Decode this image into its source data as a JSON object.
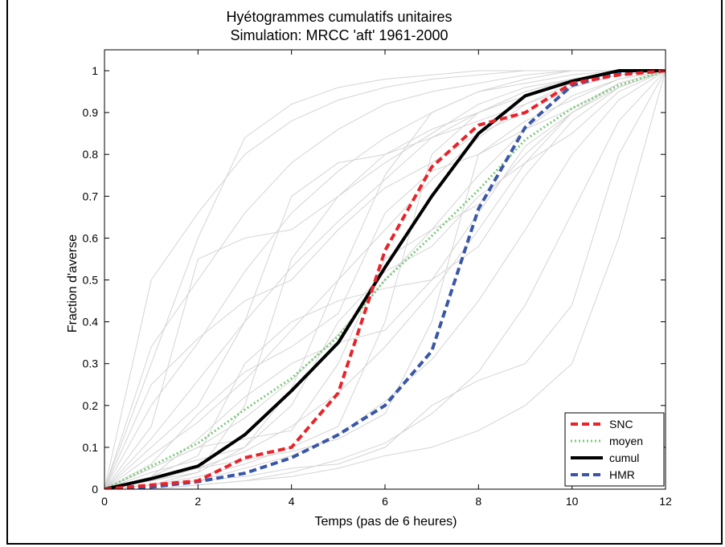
{
  "chart_data": {
    "type": "line",
    "title": "Hyétogrammes cumulatifs unitaires",
    "subtitle": "Simulation:  MRCC 'aft' 1961-2000",
    "xlabel": "Temps (pas de 6 heures)",
    "ylabel": "Fraction d'averse",
    "xlim": [
      0,
      12
    ],
    "ylim": [
      0,
      1.05
    ],
    "xticks": [
      0,
      2,
      4,
      6,
      8,
      10,
      12
    ],
    "xtick_labels": [
      "0",
      "2",
      "4",
      "6",
      "8",
      "10",
      "12"
    ],
    "yticks": [
      0,
      0.1,
      0.2,
      0.3,
      0.4,
      0.5,
      0.6,
      0.7,
      0.8,
      0.9,
      1
    ],
    "ytick_labels": [
      "0",
      "0.1",
      "0.2",
      "0.3",
      "0.4",
      "0.5",
      "0.6",
      "0.7",
      "0.8",
      "0.9",
      "1"
    ],
    "grid": false,
    "legend_position": "bottom-right",
    "x": [
      0,
      1,
      2,
      3,
      4,
      5,
      6,
      7,
      8,
      9,
      10,
      11,
      12
    ],
    "series": [
      {
        "name": "SNC",
        "color": "#e8232a",
        "style": "dashed",
        "width": 4,
        "values": [
          0,
          0.01,
          0.02,
          0.075,
          0.1,
          0.23,
          0.57,
          0.77,
          0.87,
          0.9,
          0.97,
          0.99,
          1.0
        ]
      },
      {
        "name": "moyen",
        "color": "#7ec87e",
        "style": "dotted",
        "width": 3,
        "values": [
          0,
          0.055,
          0.11,
          0.19,
          0.265,
          0.365,
          0.5,
          0.605,
          0.715,
          0.835,
          0.91,
          0.965,
          1.0
        ]
      },
      {
        "name": "cumul",
        "color": "#000000",
        "style": "solid",
        "width": 4,
        "values": [
          0,
          0.025,
          0.055,
          0.13,
          0.235,
          0.35,
          0.53,
          0.7,
          0.85,
          0.94,
          0.975,
          1.0,
          1.0
        ]
      },
      {
        "name": "HMR",
        "color": "#3a56a6",
        "style": "dashed",
        "width": 4,
        "values": [
          0,
          0.005,
          0.018,
          0.038,
          0.075,
          0.13,
          0.2,
          0.33,
          0.67,
          0.865,
          0.965,
          0.995,
          1.0
        ]
      }
    ],
    "background_series_color": "#d4d4d4",
    "background_series": [
      [
        0,
        0.5,
        0.66,
        0.8,
        0.88,
        0.93,
        0.96,
        0.98,
        0.99,
        1.0,
        1.0,
        1.0,
        1.0
      ],
      [
        0,
        0.34,
        0.5,
        0.66,
        0.78,
        0.86,
        0.92,
        0.95,
        0.97,
        0.99,
        1.0,
        1.0,
        1.0
      ],
      [
        0,
        0.2,
        0.35,
        0.52,
        0.66,
        0.76,
        0.84,
        0.9,
        0.95,
        0.98,
        1.0,
        1.0,
        1.0
      ],
      [
        0,
        0.12,
        0.26,
        0.4,
        0.53,
        0.64,
        0.74,
        0.84,
        0.9,
        0.95,
        0.98,
        1.0,
        1.0
      ],
      [
        0,
        0.08,
        0.16,
        0.26,
        0.38,
        0.5,
        0.62,
        0.74,
        0.84,
        0.92,
        0.97,
        1.0,
        1.0
      ],
      [
        0,
        0.05,
        0.1,
        0.17,
        0.26,
        0.37,
        0.5,
        0.62,
        0.75,
        0.86,
        0.94,
        0.98,
        1.0
      ],
      [
        0,
        0.02,
        0.05,
        0.09,
        0.15,
        0.23,
        0.34,
        0.47,
        0.62,
        0.78,
        0.9,
        0.97,
        1.0
      ],
      [
        0,
        0.01,
        0.02,
        0.05,
        0.08,
        0.13,
        0.21,
        0.31,
        0.45,
        0.62,
        0.8,
        0.93,
        1.0
      ],
      [
        0,
        0.0,
        0.01,
        0.02,
        0.04,
        0.07,
        0.11,
        0.18,
        0.28,
        0.44,
        0.66,
        0.88,
        1.0
      ],
      [
        0,
        0.3,
        0.6,
        0.84,
        0.92,
        0.96,
        0.98,
        0.99,
        1.0,
        1.0,
        1.0,
        1.0,
        1.0
      ],
      [
        0,
        0.02,
        0.04,
        0.2,
        0.55,
        0.7,
        0.78,
        0.85,
        0.92,
        0.96,
        0.98,
        1.0,
        1.0
      ],
      [
        0,
        0.01,
        0.03,
        0.06,
        0.1,
        0.15,
        0.4,
        0.8,
        0.9,
        0.95,
        0.98,
        1.0,
        1.0
      ],
      [
        0,
        0.05,
        0.1,
        0.12,
        0.14,
        0.3,
        0.55,
        0.62,
        0.68,
        0.8,
        0.9,
        0.96,
        1.0
      ],
      [
        0,
        0.03,
        0.08,
        0.3,
        0.4,
        0.45,
        0.48,
        0.5,
        0.58,
        0.75,
        0.88,
        0.96,
        1.0
      ],
      [
        0,
        0.15,
        0.55,
        0.6,
        0.62,
        0.7,
        0.8,
        0.86,
        0.9,
        0.94,
        0.97,
        1.0,
        1.0
      ],
      [
        0,
        0.01,
        0.02,
        0.03,
        0.05,
        0.06,
        0.1,
        0.2,
        0.26,
        0.3,
        0.44,
        0.8,
        1.0
      ],
      [
        0,
        0.04,
        0.07,
        0.1,
        0.2,
        0.4,
        0.52,
        0.58,
        0.7,
        0.78,
        0.85,
        0.95,
        1.0
      ],
      [
        0,
        0.1,
        0.2,
        0.4,
        0.7,
        0.78,
        0.8,
        0.84,
        0.88,
        0.92,
        0.96,
        0.99,
        1.0
      ],
      [
        0,
        0.02,
        0.05,
        0.07,
        0.09,
        0.12,
        0.18,
        0.4,
        0.8,
        0.88,
        0.93,
        0.98,
        1.0
      ],
      [
        0,
        0.06,
        0.18,
        0.28,
        0.34,
        0.42,
        0.66,
        0.76,
        0.8,
        0.86,
        0.91,
        0.97,
        1.0
      ],
      [
        0,
        0.0,
        0.01,
        0.02,
        0.03,
        0.05,
        0.08,
        0.1,
        0.14,
        0.2,
        0.3,
        0.6,
        1.0
      ],
      [
        0,
        0.25,
        0.36,
        0.45,
        0.5,
        0.62,
        0.72,
        0.78,
        0.85,
        0.9,
        0.96,
        0.99,
        1.0
      ],
      [
        0,
        0.03,
        0.12,
        0.22,
        0.3,
        0.35,
        0.38,
        0.5,
        0.66,
        0.82,
        0.9,
        0.96,
        1.0
      ],
      [
        0,
        0.01,
        0.04,
        0.1,
        0.24,
        0.5,
        0.75,
        0.9,
        0.95,
        0.97,
        0.99,
        1.0,
        1.0
      ]
    ]
  }
}
